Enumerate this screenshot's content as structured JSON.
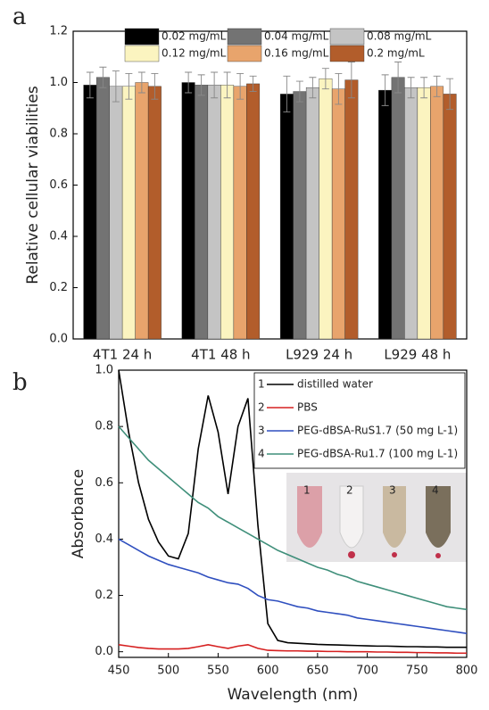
{
  "chart_data": [
    {
      "type": "bar",
      "panel_label": "a",
      "y_label": "Relative cellular viabilities",
      "categories": [
        "4T1 24 h",
        "4T1 48 h",
        "L929 24 h",
        "L929 48 h"
      ],
      "series": [
        {
          "name": "0.02 mg/mL",
          "color": "#000000",
          "values": [
            0.99,
            1.0,
            0.955,
            0.97
          ],
          "errors": [
            0.05,
            0.04,
            0.07,
            0.06
          ]
        },
        {
          "name": "0.04 mg/mL",
          "color": "#737373",
          "values": [
            1.02,
            0.99,
            0.965,
            1.02
          ],
          "errors": [
            0.04,
            0.04,
            0.04,
            0.06
          ]
        },
        {
          "name": "0.08 mg/mL",
          "color": "#c4c4c4",
          "values": [
            0.985,
            0.99,
            0.98,
            0.98
          ],
          "errors": [
            0.06,
            0.05,
            0.04,
            0.04
          ]
        },
        {
          "name": "0.12 mg/mL",
          "color": "#fbf4c0",
          "values": [
            0.985,
            0.99,
            1.015,
            0.98
          ],
          "errors": [
            0.05,
            0.05,
            0.04,
            0.04
          ]
        },
        {
          "name": "0.16 mg/mL",
          "color": "#e8a46c",
          "values": [
            1.0,
            0.985,
            0.975,
            0.985
          ],
          "errors": [
            0.04,
            0.05,
            0.06,
            0.04
          ]
        },
        {
          "name": "0.2 mg/mL",
          "color": "#b25d2b",
          "values": [
            0.985,
            0.995,
            1.01,
            0.955
          ],
          "errors": [
            0.05,
            0.03,
            0.07,
            0.06
          ]
        }
      ],
      "ylim": [
        0,
        1.2
      ],
      "yticks": [
        {
          "value": 0,
          "label": "0.0"
        },
        0.2,
        0.4,
        0.6,
        0.8,
        {
          "value": 1,
          "label": "1.0"
        },
        1.2
      ],
      "legend_position": "top",
      "grid": false
    },
    {
      "type": "line",
      "panel_label": "b",
      "x_label": "Wavelength (nm)",
      "y_label": "Absorbance",
      "x": [
        450,
        460,
        470,
        480,
        490,
        500,
        510,
        520,
        530,
        540,
        550,
        560,
        570,
        580,
        590,
        600,
        610,
        620,
        630,
        640,
        650,
        660,
        670,
        680,
        690,
        700,
        710,
        720,
        730,
        740,
        750,
        760,
        770,
        780,
        790,
        800
      ],
      "series": [
        {
          "name": "distilled water",
          "color": "#000000",
          "values": [
            1.0,
            0.78,
            0.6,
            0.47,
            0.39,
            0.34,
            0.33,
            0.42,
            0.72,
            0.91,
            0.78,
            0.56,
            0.8,
            0.9,
            0.45,
            0.1,
            0.04,
            0.032,
            0.03,
            0.028,
            0.026,
            0.025,
            0.024,
            0.023,
            0.022,
            0.021,
            0.02,
            0.02,
            0.019,
            0.018,
            0.018,
            0.017,
            0.017,
            0.016,
            0.016,
            0.016
          ]
        },
        {
          "name": "PBS",
          "color": "#d62020",
          "values": [
            0.025,
            0.02,
            0.015,
            0.012,
            0.01,
            0.01,
            0.01,
            0.012,
            0.018,
            0.025,
            0.018,
            0.012,
            0.02,
            0.025,
            0.012,
            0.005,
            0.004,
            0.003,
            0.003,
            0.002,
            0.002,
            0.001,
            0.001,
            0,
            0,
            0,
            -0.001,
            -0.001,
            -0.002,
            -0.002,
            -0.003,
            -0.003,
            -0.004,
            -0.004,
            -0.005,
            -0.005
          ]
        },
        {
          "name": "PEG-dBSA-RuS1.7 (50 mg L-1)",
          "color": "#2f4fbf",
          "values": [
            0.4,
            0.38,
            0.36,
            0.34,
            0.325,
            0.31,
            0.3,
            0.29,
            0.28,
            0.265,
            0.255,
            0.245,
            0.24,
            0.225,
            0.2,
            0.185,
            0.18,
            0.17,
            0.16,
            0.155,
            0.145,
            0.14,
            0.135,
            0.13,
            0.12,
            0.115,
            0.11,
            0.105,
            0.1,
            0.095,
            0.09,
            0.085,
            0.08,
            0.075,
            0.07,
            0.065
          ]
        },
        {
          "name": "PEG-dBSA-Ru1.7 (100 mg L-1)",
          "color": "#3f8f7a",
          "values": [
            0.8,
            0.76,
            0.72,
            0.68,
            0.65,
            0.62,
            0.59,
            0.56,
            0.53,
            0.51,
            0.48,
            0.46,
            0.44,
            0.42,
            0.4,
            0.38,
            0.36,
            0.345,
            0.33,
            0.315,
            0.3,
            0.29,
            0.275,
            0.265,
            0.25,
            0.24,
            0.23,
            0.22,
            0.21,
            0.2,
            0.19,
            0.18,
            0.17,
            0.16,
            0.155,
            0.15
          ]
        }
      ],
      "legend_numbers": [
        "1",
        "2",
        "3",
        "4"
      ],
      "inset_labels": [
        "1",
        "2",
        "3",
        "4"
      ],
      "xlim": [
        450,
        800
      ],
      "xticks": [
        450,
        500,
        550,
        600,
        650,
        700,
        750,
        800
      ],
      "ylim": [
        -0.02,
        1.0
      ],
      "yticks": [
        {
          "value": 0,
          "label": "0.0"
        },
        0.2,
        0.4,
        0.6,
        0.8,
        {
          "value": 1,
          "label": "1.0"
        }
      ],
      "legend_position": "top-right",
      "grid": false
    }
  ]
}
